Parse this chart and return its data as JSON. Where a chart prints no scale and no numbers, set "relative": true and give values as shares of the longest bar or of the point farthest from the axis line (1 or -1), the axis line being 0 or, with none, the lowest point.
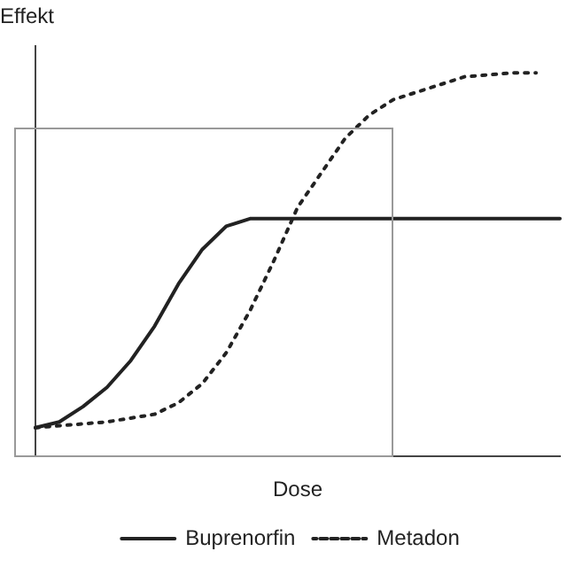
{
  "chart_data": {
    "type": "line",
    "relative": true,
    "ylabel": "Effekt",
    "xlabel": "Dose",
    "legend": "bottom",
    "marker": "none",
    "categories": [
      null,
      null,
      null,
      null,
      null,
      null,
      null,
      null,
      null,
      null,
      null,
      null,
      null,
      null,
      null,
      null,
      null,
      null,
      null,
      null,
      null,
      null,
      null
    ],
    "series": [
      {
        "name": "Buprenorfin",
        "color": "#222222",
        "line_style": "solid",
        "values": [
          0.075,
          0.09,
          0.13,
          0.18,
          0.25,
          0.34,
          0.45,
          0.54,
          0.6,
          0.62,
          0.62,
          0.62,
          0.62,
          0.62,
          0.62,
          0.62,
          0.62,
          0.62,
          0.62,
          0.62,
          0.62,
          0.62,
          0.62
        ]
      },
      {
        "name": "Metadon",
        "color": "#222222",
        "line_style": "dotted",
        "values": [
          0.075,
          0.08,
          0.085,
          0.09,
          0.1,
          0.11,
          0.14,
          0.19,
          0.27,
          0.38,
          0.51,
          0.65,
          0.74,
          0.83,
          0.89,
          0.93,
          0.95,
          0.97,
          0.99,
          0.995,
          1,
          1,
          null
        ]
      }
    ]
  }
}
